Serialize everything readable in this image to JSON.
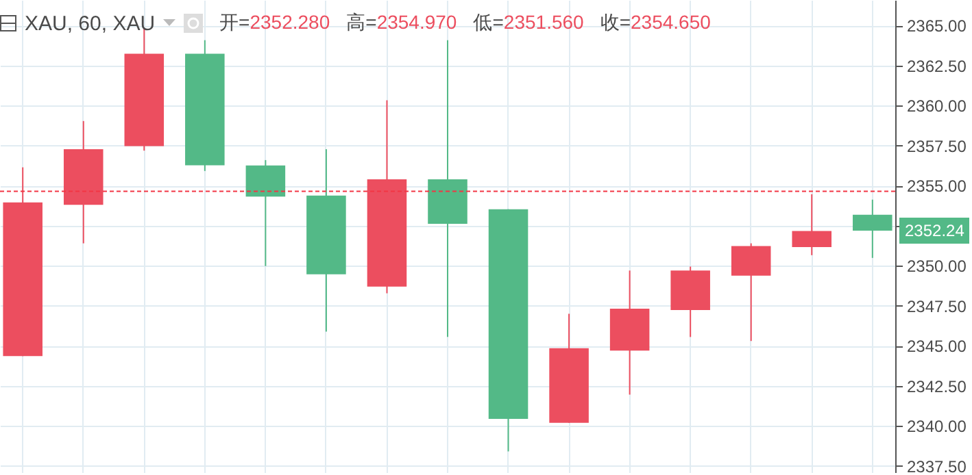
{
  "chart_data": {
    "type": "candlestick",
    "title": "XAU, 60, XAU",
    "annotations": [
      "开=2352.280",
      "高=2354.970",
      "低=2351.560",
      "收=2354.650",
      "2352.24"
    ],
    "categories": [
      null,
      null,
      null,
      null,
      null,
      null,
      null,
      null,
      null,
      null,
      null,
      null,
      null,
      null,
      null
    ],
    "ohlc": [
      [
        2344.36,
        2356.15,
        2344.36,
        2353.96
      ],
      [
        2353.81,
        2359.04,
        2351.4,
        2357.28
      ],
      [
        2357.47,
        2364.8,
        2357.19,
        2363.24
      ],
      [
        2363.24,
        2364.09,
        2355.92,
        2356.28
      ],
      [
        2356.26,
        2356.6,
        2349.98,
        2354.32
      ],
      [
        2354.38,
        2357.28,
        2345.89,
        2349.47
      ],
      [
        2348.7,
        2360.34,
        2348.28,
        2355.4
      ],
      [
        2355.4,
        2364.09,
        2345.55,
        2352.62
      ],
      [
        2353.53,
        2353.53,
        2338.4,
        2340.44
      ],
      [
        2340.19,
        2347.0,
        2340.19,
        2344.85
      ],
      [
        2344.7,
        2349.7,
        2341.95,
        2347.32
      ],
      [
        2347.23,
        2349.95,
        2345.55,
        2349.7
      ],
      [
        2349.38,
        2351.4,
        2345.3,
        2351.23
      ],
      [
        2351.17,
        2354.47,
        2350.66,
        2352.17
      ],
      [
        2353.19,
        2354.13,
        2350.49,
        2352.19
      ]
    ],
    "colors": [
      "#ec4e5f",
      "#ec4e5f",
      "#ec4e5f",
      "#53b987",
      "#53b987",
      "#53b987",
      "#ec4e5f",
      "#53b987",
      "#53b987",
      "#ec4e5f",
      "#ec4e5f",
      "#ec4e5f",
      "#ec4e5f",
      "#ec4e5f",
      "#53b987"
    ],
    "ylim": [
      2337.1,
      2366.6
    ],
    "yticks": [
      {
        "value": 2337.5,
        "label": "2337.50"
      },
      {
        "value": 2340,
        "label": "2340.00"
      },
      {
        "value": 2342.5,
        "label": "2342.50"
      },
      {
        "value": 2345,
        "label": "2345.00"
      },
      {
        "value": 2347.5,
        "label": "2347.50"
      },
      {
        "value": 2350,
        "label": "2350.00"
      },
      {
        "value": 2352.5,
        "label": null
      },
      {
        "value": 2355,
        "label": "2355.00"
      },
      {
        "value": 2357.5,
        "label": "2357.50"
      },
      {
        "value": 2360,
        "label": "2360.00"
      },
      {
        "value": 2362.5,
        "label": "2362.50"
      },
      {
        "value": 2365,
        "label": "2365.00"
      }
    ],
    "ref_lines": [
      {
        "axis": "y",
        "value": 2354.65,
        "color": "#f23645",
        "line_style": "dashed"
      }
    ],
    "grid": true
  }
}
